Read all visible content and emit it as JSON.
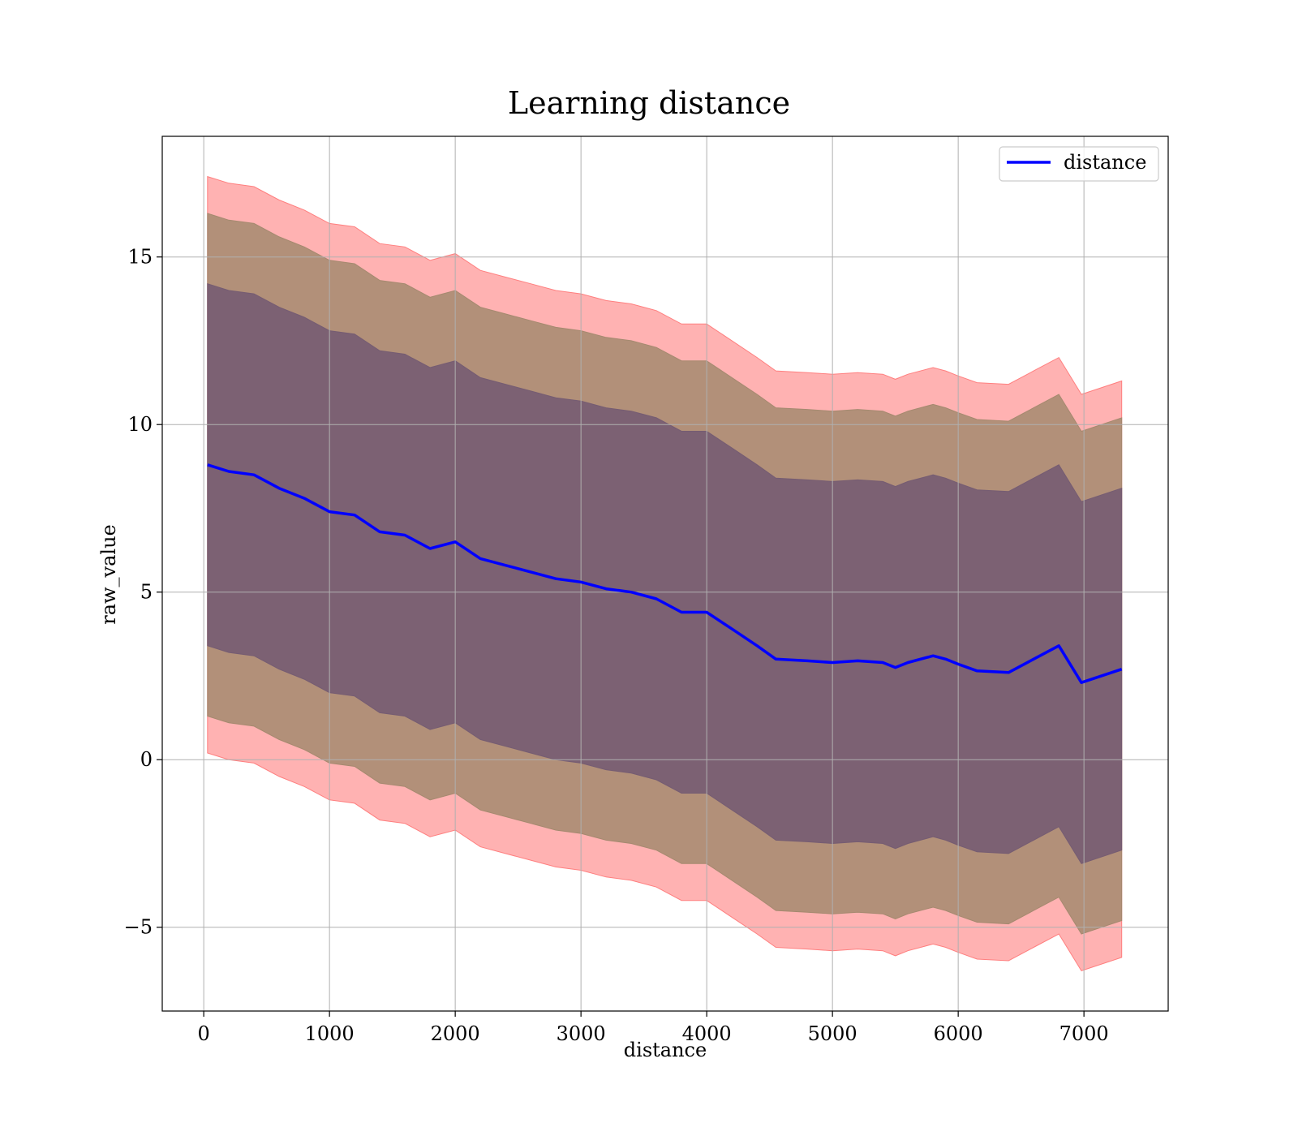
{
  "colors": {
    "band_outer": "#ff7f7f",
    "band_middle": "#a5896f",
    "band_inner": "#755c72",
    "line": "#0000ff",
    "grid": "#b0b0b0"
  },
  "chart_data": {
    "type": "line",
    "title": "Learning distance",
    "xlabel": "distance",
    "ylabel": "raw_value",
    "xlim": [
      -330,
      7670
    ],
    "ylim": [
      -7.5,
      18.6
    ],
    "grid": true,
    "legend": {
      "position": "top-right",
      "entries": [
        "distance"
      ]
    },
    "x_ticks": [
      0,
      1000,
      2000,
      3000,
      4000,
      5000,
      6000,
      7000
    ],
    "x_tick_labels": [
      "0",
      "1000",
      "2000",
      "3000",
      "4000",
      "5000",
      "6000",
      "7000"
    ],
    "y_ticks": [
      -5,
      0,
      5,
      10,
      15
    ],
    "y_tick_labels": [
      "−5",
      "0",
      "5",
      "10",
      "15"
    ],
    "x": [
      30,
      200,
      400,
      600,
      800,
      1000,
      1200,
      1400,
      1600,
      1800,
      2000,
      2200,
      2400,
      2600,
      2800,
      3000,
      3200,
      3400,
      3600,
      3800,
      4000,
      4200,
      4400,
      4550,
      4800,
      5000,
      5200,
      5400,
      5500,
      5600,
      5800,
      5900,
      6000,
      6150,
      6400,
      6600,
      6800,
      6980,
      7300
    ],
    "series": [
      {
        "name": "distance",
        "values": [
          8.8,
          8.6,
          8.5,
          8.1,
          7.8,
          7.4,
          7.3,
          6.8,
          6.7,
          6.3,
          6.5,
          6.0,
          5.8,
          5.6,
          5.4,
          5.3,
          5.1,
          5.0,
          4.8,
          4.4,
          4.4,
          3.9,
          3.4,
          3.0,
          2.95,
          2.9,
          2.95,
          2.9,
          2.75,
          2.9,
          3.1,
          3.0,
          2.85,
          2.65,
          2.6,
          3.0,
          3.4,
          2.3,
          2.7
        ]
      }
    ],
    "bands": [
      {
        "name": "outer",
        "half_width": 8.6
      },
      {
        "name": "middle",
        "half_width": 7.5
      },
      {
        "name": "inner",
        "half_width": 5.4
      }
    ]
  }
}
